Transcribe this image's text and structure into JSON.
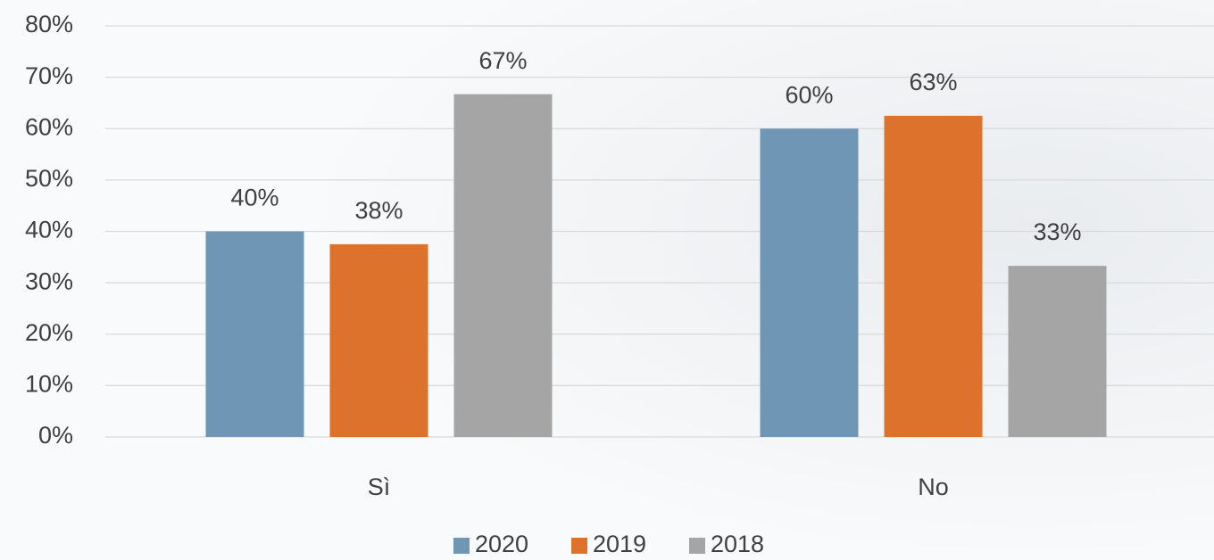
{
  "chart_data": {
    "type": "bar",
    "categories": [
      "Sì",
      "No"
    ],
    "series": [
      {
        "name": "2020",
        "color": "#7096b5",
        "values": [
          40,
          60
        ],
        "value_labels": [
          "40%",
          "60%"
        ]
      },
      {
        "name": "2019",
        "color": "#dd722d",
        "values": [
          37.5,
          62.5
        ],
        "value_labels": [
          "38%",
          "63%"
        ]
      },
      {
        "name": "2018",
        "color": "#a5a5a5",
        "values": [
          66.7,
          33.3
        ],
        "value_labels": [
          "67%",
          "33%"
        ]
      }
    ],
    "ylim": [
      0,
      80
    ],
    "yticks": [
      {
        "value": 0,
        "label": "0%"
      },
      {
        "value": 10,
        "label": "10%"
      },
      {
        "value": 20,
        "label": "20%"
      },
      {
        "value": 30,
        "label": "30%"
      },
      {
        "value": 40,
        "label": "40%"
      },
      {
        "value": 50,
        "label": "50%"
      },
      {
        "value": 60,
        "label": "60%"
      },
      {
        "value": 70,
        "label": "70%"
      },
      {
        "value": 80,
        "label": "80%"
      }
    ],
    "grid": true,
    "legend": "bottom"
  }
}
